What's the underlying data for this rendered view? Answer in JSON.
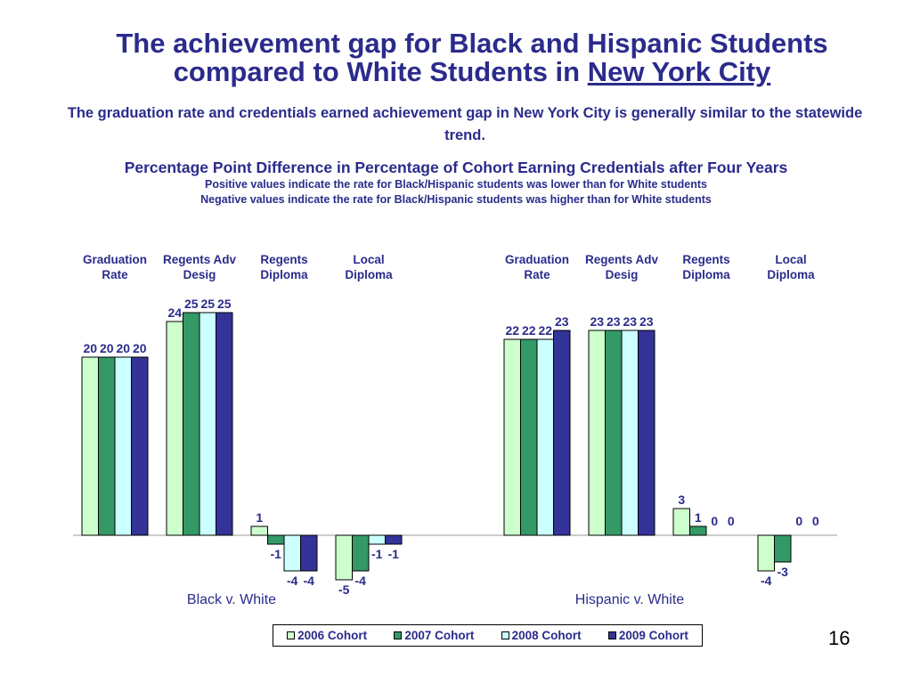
{
  "title": {
    "line1": "The achievement gap for Black and Hispanic Students",
    "line2_prefix": "compared to White Students in ",
    "line2_underlined": "New York City"
  },
  "subtitle": "The graduation rate and credentials earned achievement gap in New York City is generally similar to the statewide trend.",
  "chart_heading": "Percentage Point Difference in Percentage of Cohort Earning Credentials after Four Years",
  "notes": [
    "Positive values indicate the rate for Black/Hispanic students was lower than for White students",
    "Negative values indicate the rate for Black/Hispanic students was higher than for White students"
  ],
  "page_number": "16",
  "colors": {
    "title": "#2b2b8c",
    "series": [
      "#ccffcc",
      "#339966",
      "#ccffff",
      "#333399"
    ]
  },
  "chart_data": {
    "type": "bar",
    "ylim": [
      -6,
      26
    ],
    "grid": false,
    "legend_position": "bottom",
    "series_names": [
      "2006 Cohort",
      "2007 Cohort",
      "2008 Cohort",
      "2009 Cohort"
    ],
    "groups": [
      {
        "label": "Black v. White",
        "categories": [
          {
            "name": "Graduation Rate",
            "label_lines": [
              "Graduation",
              "Rate"
            ],
            "values": [
              20,
              20,
              20,
              20
            ]
          },
          {
            "name": "Regents Adv Desig",
            "label_lines": [
              "Regents Adv",
              "Desig"
            ],
            "values": [
              24,
              25,
              25,
              25
            ]
          },
          {
            "name": "Regents Diploma",
            "label_lines": [
              "Regents",
              "Diploma"
            ],
            "values": [
              1,
              -1,
              -4,
              -4
            ]
          },
          {
            "name": "Local Diploma",
            "label_lines": [
              "Local",
              "Diploma"
            ],
            "values": [
              -5,
              -4,
              -1,
              -1
            ]
          }
        ]
      },
      {
        "label": "Hispanic v. White",
        "categories": [
          {
            "name": "Graduation Rate",
            "label_lines": [
              "Graduation",
              "Rate"
            ],
            "values": [
              22,
              22,
              22,
              23
            ]
          },
          {
            "name": "Regents Adv Desig",
            "label_lines": [
              "Regents Adv",
              "Desig"
            ],
            "values": [
              23,
              23,
              23,
              23
            ]
          },
          {
            "name": "Regents Diploma",
            "label_lines": [
              "Regents",
              "Diploma"
            ],
            "values": [
              3,
              1,
              0,
              0
            ]
          },
          {
            "name": "Local Diploma",
            "label_lines": [
              "Local",
              "Diploma"
            ],
            "values": [
              -4,
              -3,
              0,
              0
            ]
          }
        ]
      }
    ]
  }
}
